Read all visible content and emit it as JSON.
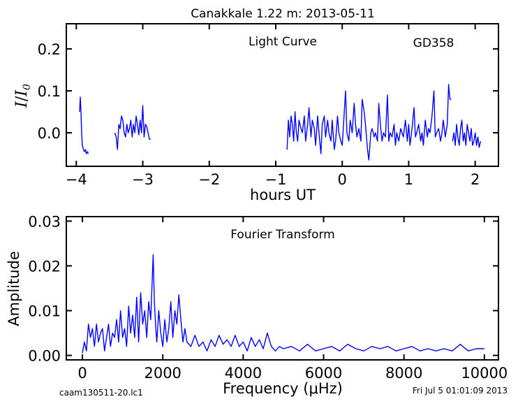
{
  "figure": {
    "title": "Canakkale 1.22 m:  2013-05-11",
    "footer_left": "caam130511-20.lc1",
    "footer_right": "Fri Jul  5 01:01:09 2013"
  },
  "colors": {
    "series": "#0000ff",
    "axes": "#000000",
    "background": "#ffffff"
  },
  "chart_data": [
    {
      "type": "line",
      "name": "light-curve",
      "annotation": "Light Curve",
      "label": "GD358",
      "xlabel": "hours UT",
      "ylabel": "I/I0",
      "xlim": [
        -4.15,
        2.35
      ],
      "ylim": [
        -0.08,
        0.26
      ],
      "xticks": [
        -4,
        -3,
        -2,
        -1,
        0,
        1,
        2
      ],
      "xtick_labels": [
        "−4",
        "−3",
        "−2",
        "−1",
        "0",
        "1",
        "2"
      ],
      "yticks": [
        0.0,
        0.1,
        0.2
      ],
      "ytick_labels": [
        "0.0",
        "0.1",
        "0.2"
      ],
      "grid": false,
      "segments": [
        {
          "x": [
            -3.95,
            -3.94,
            -3.93,
            -3.92,
            -3.91,
            -3.9,
            -3.88,
            -3.86,
            -3.85,
            -3.83,
            -3.82
          ],
          "y": [
            0.05,
            0.085,
            0.05,
            0.0,
            -0.03,
            -0.035,
            -0.045,
            -0.04,
            -0.05,
            -0.045,
            -0.05
          ]
        },
        {
          "x": [
            -3.42,
            -3.4,
            -3.38,
            -3.36,
            -3.34,
            -3.32,
            -3.3,
            -3.28,
            -3.26,
            -3.24,
            -3.22,
            -3.2,
            -3.18,
            -3.16,
            -3.14,
            -3.12,
            -3.1,
            -3.08,
            -3.06,
            -3.04,
            -3.02,
            -3.0,
            -2.98,
            -2.96,
            -2.94,
            -2.92,
            -2.9,
            -2.88
          ],
          "y": [
            0.0,
            -0.01,
            -0.04,
            0.02,
            0.01,
            0.04,
            0.03,
            0.0,
            -0.01,
            0.02,
            0.0,
            0.01,
            0.03,
            -0.01,
            0.02,
            0.0,
            0.04,
            0.02,
            -0.005,
            0.03,
            0.0,
            0.065,
            -0.01,
            0.02,
            0.015,
            0.0,
            -0.015,
            -0.015
          ]
        },
        {
          "x": [
            -0.83,
            -0.81,
            -0.79,
            -0.77,
            -0.75,
            -0.73,
            -0.71,
            -0.69,
            -0.67,
            -0.65,
            -0.62,
            -0.6,
            -0.57,
            -0.55,
            -0.52,
            -0.5,
            -0.47,
            -0.45,
            -0.42,
            -0.4,
            -0.37,
            -0.35,
            -0.32,
            -0.3,
            -0.27,
            -0.25,
            -0.22,
            -0.2,
            -0.17,
            -0.15,
            -0.12,
            -0.1,
            -0.07,
            -0.05,
            -0.02,
            0.0,
            0.02,
            0.05,
            0.07,
            0.1,
            0.12,
            0.15,
            0.18,
            0.2,
            0.22,
            0.25,
            0.28,
            0.3,
            0.33,
            0.35,
            0.38,
            0.4,
            0.43,
            0.45,
            0.48,
            0.5,
            0.53,
            0.55,
            0.58,
            0.6,
            0.62,
            0.65,
            0.68,
            0.7,
            0.72,
            0.75,
            0.78,
            0.8,
            0.82,
            0.85,
            0.88,
            0.9,
            0.92,
            0.95,
            0.98,
            1.0,
            1.02,
            1.05,
            1.08,
            1.1,
            1.12,
            1.15,
            1.18,
            1.2,
            1.22,
            1.25,
            1.28,
            1.3,
            1.32,
            1.35,
            1.38,
            1.4,
            1.42,
            1.45,
            1.48,
            1.5,
            1.52,
            1.55,
            1.58,
            1.6,
            1.62,
            1.64
          ],
          "y": [
            -0.04,
            0.03,
            -0.01,
            0.04,
            0.02,
            -0.02,
            0.05,
            0.0,
            -0.02,
            0.03,
            0.01,
            0.0,
            0.04,
            -0.02,
            0.02,
            0.06,
            -0.01,
            0.03,
            0.01,
            -0.03,
            0.04,
            0.0,
            -0.05,
            0.02,
            0.04,
            -0.01,
            0.03,
            0.0,
            -0.02,
            0.03,
            -0.04,
            -0.02,
            0.04,
            0.0,
            -0.02,
            -0.03,
            0.02,
            0.1,
            0.0,
            -0.02,
            0.03,
            0.0,
            0.07,
            0.02,
            -0.01,
            0.01,
            -0.02,
            0.08,
            0.05,
            0.02,
            -0.04,
            -0.065,
            0.0,
            0.01,
            -0.01,
            0.0,
            -0.02,
            0.07,
            0.01,
            -0.02,
            0.0,
            -0.01,
            0.09,
            -0.02,
            0.0,
            -0.01,
            0.02,
            -0.03,
            0.0,
            -0.02,
            0.01,
            0.0,
            -0.01,
            0.03,
            -0.02,
            0.02,
            -0.03,
            0.01,
            0.06,
            -0.01,
            0.0,
            0.02,
            -0.02,
            0.0,
            -0.03,
            0.03,
            -0.01,
            0.01,
            0.0,
            0.04,
            0.1,
            -0.01,
            0.0,
            0.01,
            -0.02,
            0.0,
            0.03,
            -0.01,
            0.02,
            0.115,
            0.08,
            0.08
          ]
        },
        {
          "x": [
            1.66,
            1.68,
            1.7,
            1.72,
            1.74,
            1.76,
            1.78,
            1.8,
            1.82,
            1.84,
            1.86,
            1.88,
            1.9,
            1.92,
            1.94,
            1.96,
            1.98,
            2.0,
            2.02,
            2.04,
            2.06,
            2.08
          ],
          "y": [
            -0.02,
            0.0,
            -0.03,
            0.02,
            -0.01,
            -0.03,
            0.01,
            0.03,
            -0.02,
            0.0,
            -0.03,
            0.02,
            0.0,
            -0.02,
            0.01,
            -0.03,
            -0.02,
            0.0,
            -0.03,
            -0.01,
            -0.035,
            -0.02
          ]
        }
      ]
    },
    {
      "type": "line",
      "name": "fourier-transform",
      "annotation": "Fourier Transform",
      "xlabel": "Frequency (μHz)",
      "ylabel": "Amplitude",
      "xlim": [
        -400,
        10350
      ],
      "ylim": [
        -0.001,
        0.031
      ],
      "xticks": [
        0,
        2000,
        4000,
        6000,
        8000,
        10000
      ],
      "xtick_labels": [
        "0",
        "2000",
        "4000",
        "6000",
        "8000",
        "10000"
      ],
      "yticks": [
        0.0,
        0.01,
        0.02,
        0.03
      ],
      "ytick_labels": [
        "0.00",
        "0.01",
        "0.02",
        "0.03"
      ],
      "grid": false,
      "x": [
        0,
        50,
        100,
        150,
        200,
        250,
        300,
        350,
        400,
        450,
        500,
        550,
        600,
        650,
        700,
        750,
        800,
        850,
        900,
        950,
        1000,
        1050,
        1100,
        1150,
        1200,
        1250,
        1300,
        1350,
        1400,
        1450,
        1500,
        1550,
        1600,
        1650,
        1700,
        1730,
        1760,
        1790,
        1820,
        1850,
        1900,
        1950,
        2000,
        2050,
        2100,
        2150,
        2200,
        2250,
        2300,
        2350,
        2400,
        2450,
        2500,
        2550,
        2600,
        2700,
        2800,
        2900,
        3000,
        3100,
        3200,
        3300,
        3400,
        3500,
        3600,
        3700,
        3800,
        3900,
        4000,
        4100,
        4200,
        4300,
        4400,
        4500,
        4600,
        4700,
        4800,
        4900,
        5000,
        5200,
        5400,
        5600,
        5800,
        6000,
        6200,
        6400,
        6600,
        6800,
        7000,
        7200,
        7400,
        7600,
        7800,
        8000,
        8200,
        8400,
        8600,
        8800,
        9000,
        9200,
        9400,
        9600,
        9800,
        10000
      ],
      "y": [
        0.0005,
        0.003,
        0.001,
        0.007,
        0.004,
        0.006,
        0.002,
        0.007,
        0.003,
        0.005,
        0.006,
        0.001,
        0.004,
        0.007,
        0.002,
        0.005,
        0.004,
        0.008,
        0.003,
        0.01,
        0.004,
        0.006,
        0.002,
        0.011,
        0.005,
        0.009,
        0.004,
        0.013,
        0.003,
        0.014,
        0.007,
        0.01,
        0.004,
        0.012,
        0.008,
        0.015,
        0.0225,
        0.012,
        0.007,
        0.003,
        0.01,
        0.005,
        0.002,
        0.008,
        0.003,
        0.006,
        0.012,
        0.004,
        0.01,
        0.007,
        0.0135,
        0.008,
        0.003,
        0.006,
        0.003,
        0.002,
        0.0045,
        0.002,
        0.003,
        0.001,
        0.0035,
        0.002,
        0.0045,
        0.0025,
        0.0035,
        0.002,
        0.0045,
        0.002,
        0.003,
        0.001,
        0.004,
        0.002,
        0.0035,
        0.0015,
        0.005,
        0.002,
        0.001,
        0.002,
        0.0015,
        0.002,
        0.001,
        0.0025,
        0.001,
        0.0015,
        0.002,
        0.001,
        0.0025,
        0.0015,
        0.001,
        0.002,
        0.0015,
        0.002,
        0.001,
        0.0015,
        0.002,
        0.001,
        0.0015,
        0.001,
        0.0015,
        0.001,
        0.0025,
        0.001,
        0.0015,
        0.0015
      ]
    }
  ]
}
